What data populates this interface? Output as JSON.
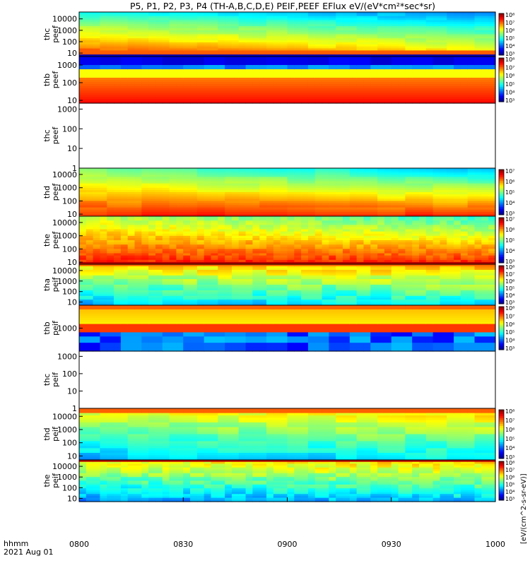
{
  "title": "P5, P1, P2, P3, P4 (TH-A,B,C,D,E) PEIF,PEEF EFlux eV/(eV*cm²*sec*sr)",
  "footer": {
    "time_label": "hhmm",
    "date_label": "2021 Aug 01"
  },
  "colorbar_units": "[eV/(cm^2-s-sr-eV)]",
  "chart_data": {
    "type": "heatmap",
    "x_ticks": [
      "0800",
      "0830",
      "0900",
      "0930",
      "1000"
    ],
    "x_range": [
      "0800",
      "1000"
    ],
    "panels": [
      {
        "label": "thc peef",
        "yticks": [
          "10",
          "100",
          "1000",
          "10000"
        ],
        "ylog": true,
        "yrange": [
          5,
          40000
        ],
        "data": true,
        "colorbar": [
          "10³",
          "10⁴",
          "10⁵",
          "10⁶",
          "10⁷",
          "10⁸"
        ],
        "profile": "thc_top"
      },
      {
        "label": "thb peef",
        "yticks": [
          "10",
          "100",
          "1000"
        ],
        "ylog": true,
        "yrange": [
          7,
          3000
        ],
        "data": true,
        "colorbar": [
          "10³",
          "10⁴",
          "10⁵",
          "10⁶",
          "10⁷",
          "10⁸"
        ],
        "profile": "thb_peef"
      },
      {
        "label": "thc peef",
        "yticks": [
          "1",
          "10",
          "100",
          "1000"
        ],
        "ylog": true,
        "yrange": [
          1,
          2000
        ],
        "data": false
      },
      {
        "label": "thd peef",
        "yticks": [
          "10",
          "100",
          "1000",
          "10000"
        ],
        "ylog": true,
        "yrange": [
          7,
          30000
        ],
        "data": true,
        "colorbar": [
          "10³",
          "10⁴",
          "10⁵",
          "10⁶",
          "10⁷"
        ],
        "profile": "thd_peef"
      },
      {
        "label": "the peef",
        "yticks": [
          "10",
          "100",
          "1000",
          "10000"
        ],
        "ylog": true,
        "yrange": [
          7,
          30000
        ],
        "data": true,
        "colorbar": [
          "10³",
          "10⁴",
          "10⁵",
          "10⁶",
          "10⁷"
        ],
        "profile": "the_peef"
      },
      {
        "label": "tha peif",
        "yticks": [
          "10",
          "100",
          "1000",
          "10000"
        ],
        "ylog": true,
        "yrange": [
          5,
          40000
        ],
        "data": true,
        "colorbar": [
          "10³",
          "10⁴",
          "10⁵",
          "10⁶",
          "10⁷",
          "10⁸"
        ],
        "profile": "tha_peif"
      },
      {
        "label": "thb peif",
        "yticks": [
          "1000"
        ],
        "ylog": true,
        "yrange": [
          100,
          10000
        ],
        "data": true,
        "colorbar": [
          "10³",
          "10⁴",
          "10⁵",
          "10⁶",
          "10⁷",
          "10⁸"
        ],
        "profile": "thb_peif"
      },
      {
        "label": "thc peif",
        "yticks": [
          "1",
          "10",
          "100",
          "1000"
        ],
        "ylog": true,
        "yrange": [
          1,
          2000
        ],
        "data": false
      },
      {
        "label": "thd peif",
        "yticks": [
          "10",
          "100",
          "1000",
          "10000"
        ],
        "ylog": true,
        "yrange": [
          5,
          40000
        ],
        "data": true,
        "colorbar": [
          "10³",
          "10⁴",
          "10⁵",
          "10⁶",
          "10⁷",
          "10⁸"
        ],
        "profile": "thd_peif"
      },
      {
        "label": "the peif",
        "yticks": [
          "10",
          "100",
          "1000",
          "10000"
        ],
        "ylog": true,
        "yrange": [
          5,
          40000
        ],
        "data": true,
        "colorbar": [
          "10³",
          "10⁴",
          "10⁵",
          "10⁶",
          "10⁷",
          "10⁸"
        ],
        "profile": "the_peif"
      }
    ]
  }
}
